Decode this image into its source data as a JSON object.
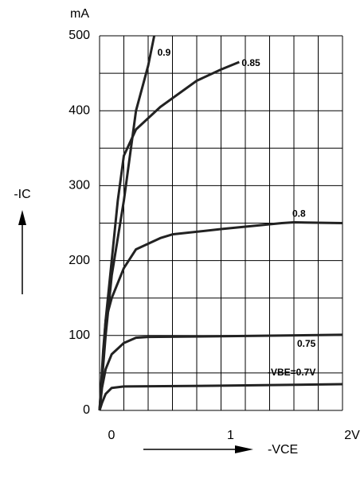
{
  "chart_data": {
    "type": "line",
    "y_unit": "mA",
    "y_label": "-IC",
    "x_label": "-VCE",
    "xlim": [
      0,
      2
    ],
    "ylim": [
      0,
      500
    ],
    "xticks": [
      {
        "value": 0,
        "label": "0"
      },
      {
        "value": 1,
        "label": "1"
      },
      {
        "value": 2,
        "label": "2V"
      }
    ],
    "yticks": [
      0,
      100,
      200,
      300,
      400,
      500
    ],
    "xgrid": [
      0,
      0.2,
      0.4,
      0.6,
      0.8,
      1,
      1.2,
      1.4,
      1.6,
      1.8,
      2
    ],
    "ygrid": [
      0,
      50,
      100,
      150,
      200,
      250,
      300,
      350,
      400,
      450,
      500
    ],
    "color": "#222222",
    "series": [
      {
        "name": "-VBE=0.7V",
        "x": [
          0,
          0.02,
          0.05,
          0.1,
          0.2,
          1,
          2
        ],
        "values": [
          0,
          10,
          22,
          30,
          32,
          33,
          35
        ]
      },
      {
        "name": "0.75",
        "x": [
          0,
          0.02,
          0.05,
          0.1,
          0.2,
          0.3,
          0.4,
          1,
          2
        ],
        "values": [
          0,
          30,
          55,
          75,
          90,
          97,
          98,
          99,
          101
        ]
      },
      {
        "name": "0.8",
        "x": [
          0,
          0.03,
          0.05,
          0.1,
          0.2,
          0.3,
          0.5,
          0.6,
          1,
          1.5,
          1.6,
          2
        ],
        "values": [
          0,
          80,
          120,
          150,
          190,
          215,
          230,
          235,
          242,
          250,
          251,
          250
        ]
      },
      {
        "name": "0.85",
        "x": [
          0,
          0.05,
          0.1,
          0.15,
          0.2,
          0.3,
          0.5,
          0.8,
          1,
          1.15
        ],
        "values": [
          0,
          120,
          200,
          280,
          340,
          375,
          405,
          440,
          455,
          465
        ]
      },
      {
        "name": "0.9",
        "x": [
          0,
          0.05,
          0.1,
          0.2,
          0.3,
          0.4,
          0.45
        ],
        "values": [
          0,
          100,
          180,
          280,
          400,
          460,
          500
        ]
      }
    ]
  }
}
